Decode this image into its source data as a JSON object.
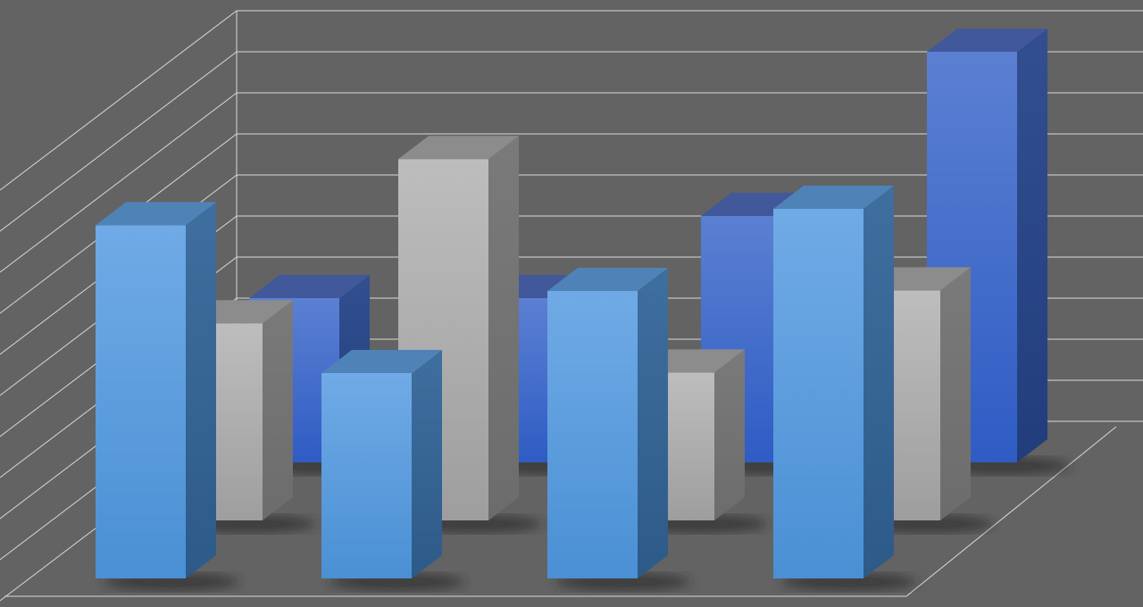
{
  "chart_data": {
    "type": "bar",
    "style": "3d-clustered-depth",
    "title": "",
    "xlabel": "",
    "ylabel": "",
    "ylim": [
      0,
      11
    ],
    "grid": true,
    "legend": "none",
    "categories": [
      "",
      "",
      "",
      ""
    ],
    "series": [
      {
        "row": "front",
        "color": "#5ea3e0",
        "values": [
          8.6,
          5.0,
          7.0,
          9.0
        ]
      },
      {
        "row": "middle",
        "color": "#b4b4b4",
        "values": [
          4.8,
          8.8,
          3.6,
          5.6
        ]
      },
      {
        "row": "back",
        "color": "#3f6fcf",
        "values": [
          4.0,
          4.0,
          6.0,
          10.0
        ]
      }
    ],
    "colors": {
      "background": "#636363",
      "grid": "#d8d8d8"
    }
  }
}
